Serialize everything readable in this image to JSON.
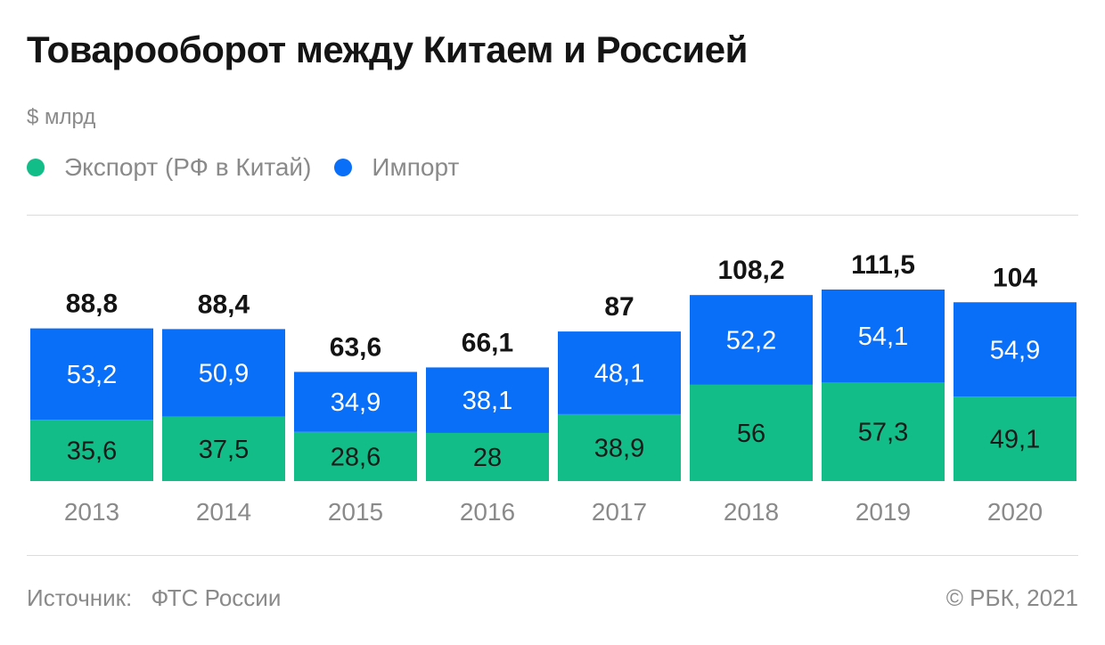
{
  "header": {
    "title": "Товарооборот между Китаем и Россией",
    "unit": "$ млрд"
  },
  "footer": {
    "source_label": "Источник:",
    "source_value": "ФТС России",
    "copyright": "© РБК, 2021"
  },
  "chart_data": {
    "type": "bar",
    "stacked": true,
    "title": "Товарооборот между Китаем и Россией",
    "ylabel": "$ млрд",
    "categories": [
      "2013",
      "2014",
      "2015",
      "2016",
      "2017",
      "2018",
      "2019",
      "2020"
    ],
    "series": [
      {
        "name": "Экспорт (РФ в Китай)",
        "color": "#13bd87",
        "values": [
          35.6,
          37.5,
          28.6,
          28,
          38.9,
          56,
          57.3,
          49.1
        ],
        "labels": [
          "35,6",
          "37,5",
          "28,6",
          "28",
          "38,9",
          "56",
          "57,3",
          "49,1"
        ]
      },
      {
        "name": "Импорт",
        "color": "#0a6ff8",
        "values": [
          53.2,
          50.9,
          34.9,
          38.1,
          48.1,
          52.2,
          54.1,
          54.9
        ],
        "labels": [
          "53,2",
          "50,9",
          "34,9",
          "38,1",
          "48,1",
          "52,2",
          "54,1",
          "54,9"
        ]
      }
    ],
    "totals": [
      88.8,
      88.4,
      63.6,
      66.1,
      87,
      108.2,
      111.5,
      104
    ],
    "total_labels": [
      "88,8",
      "88,4",
      "63,6",
      "66,1",
      "87",
      "108,2",
      "111,5",
      "104"
    ],
    "legend_position": "top-left",
    "grid": false,
    "ylim": [
      0,
      120
    ]
  }
}
